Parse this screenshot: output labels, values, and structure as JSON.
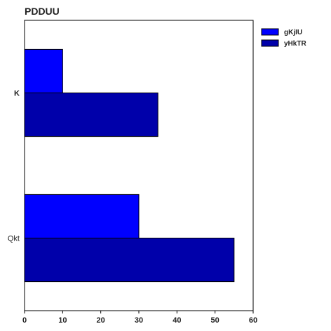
{
  "chart_data": {
    "type": "bar",
    "orientation": "horizontal",
    "title": "PDDUU",
    "xlabel": "",
    "ylabel": "",
    "categories": [
      "K",
      "Qkt"
    ],
    "series": [
      {
        "name": "gKjIU",
        "values": [
          10,
          30
        ],
        "color": "#0000ff"
      },
      {
        "name": "yHkTR",
        "values": [
          35,
          55
        ],
        "color": "#0000aa"
      }
    ],
    "xlim": [
      0,
      60
    ],
    "xticks": [
      0,
      10,
      20,
      30,
      40,
      50,
      60
    ],
    "grid": false,
    "legend_position": "top-right-outside"
  }
}
